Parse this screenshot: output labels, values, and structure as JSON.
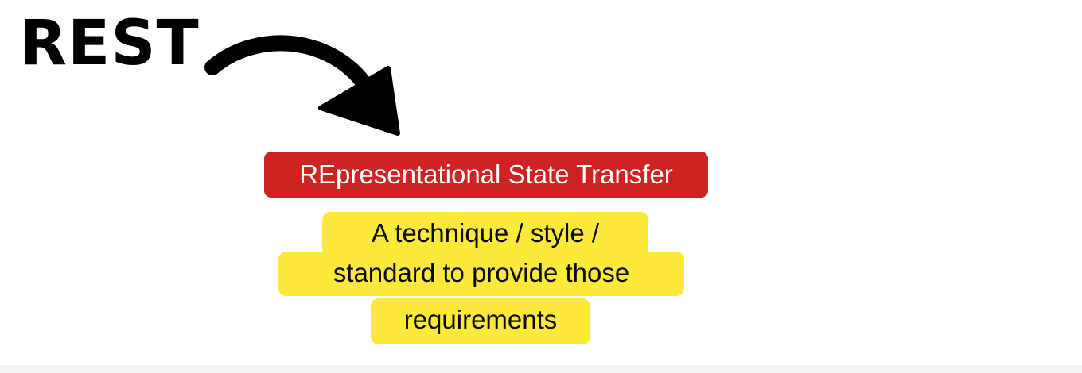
{
  "slide": {
    "heading": "REST",
    "acronym_expansion": "REpresentational State Transfer",
    "definition_lines": [
      "A technique / style /",
      "standard to provide those",
      "requirements"
    ]
  },
  "icons": {
    "arrow": "curved-arrow-icon"
  },
  "colors": {
    "badge_red": "#cf2323",
    "highlight_yellow": "#fde93a",
    "text_dark": "#000000",
    "background": "#ffffff"
  }
}
